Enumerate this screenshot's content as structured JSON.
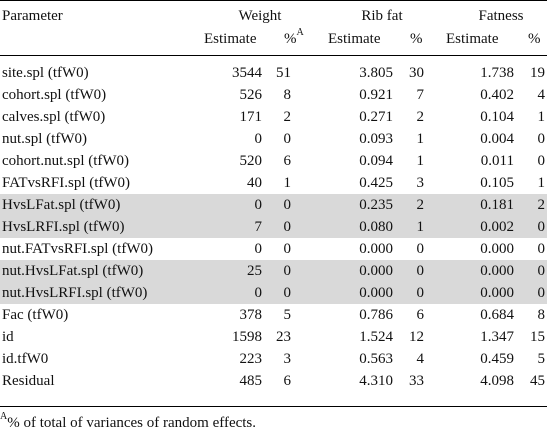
{
  "header": {
    "parameter": "Parameter",
    "groups": [
      "Weight",
      "Rib fat",
      "Fatness"
    ],
    "sub": [
      "Estimate",
      "%",
      "Estimate",
      "%",
      "Estimate",
      "%"
    ],
    "sup_a": "A"
  },
  "rows": [
    {
      "name": "site.spl (tfW0)",
      "v": [
        "3544",
        "51",
        "3.805",
        "30",
        "1.738",
        "19"
      ],
      "shaded": false
    },
    {
      "name": "cohort.spl (tfW0)",
      "v": [
        "526",
        "8",
        "0.921",
        "7",
        "0.402",
        "4"
      ],
      "shaded": false
    },
    {
      "name": "calves.spl (tfW0)",
      "v": [
        "171",
        "2",
        "0.271",
        "2",
        "0.104",
        "1"
      ],
      "shaded": false
    },
    {
      "name": "nut.spl (tfW0)",
      "v": [
        "0",
        "0",
        "0.093",
        "1",
        "0.004",
        "0"
      ],
      "shaded": false
    },
    {
      "name": "cohort.nut.spl (tfW0)",
      "v": [
        "520",
        "6",
        "0.094",
        "1",
        "0.011",
        "0"
      ],
      "shaded": false
    },
    {
      "name": "FATvsRFI.spl (tfW0)",
      "v": [
        "40",
        "1",
        "0.425",
        "3",
        "0.105",
        "1"
      ],
      "shaded": false
    },
    {
      "name": "HvsLFat.spl (tfW0)",
      "v": [
        "0",
        "0",
        "0.235",
        "2",
        "0.181",
        "2"
      ],
      "shaded": true
    },
    {
      "name": "HvsLRFI.spl (tfW0)",
      "v": [
        "7",
        "0",
        "0.080",
        "1",
        "0.002",
        "0"
      ],
      "shaded": true
    },
    {
      "name": "nut.FATvsRFI.spl (tfW0)",
      "v": [
        "0",
        "0",
        "0.000",
        "0",
        "0.000",
        "0"
      ],
      "shaded": false
    },
    {
      "name": "nut.HvsLFat.spl (tfW0)",
      "v": [
        "25",
        "0",
        "0.000",
        "0",
        "0.000",
        "0"
      ],
      "shaded": true
    },
    {
      "name": "nut.HvsLRFI.spl (tfW0)",
      "v": [
        "0",
        "0",
        "0.000",
        "0",
        "0.000",
        "0"
      ],
      "shaded": true
    },
    {
      "name": "Fac (tfW0)",
      "v": [
        "378",
        "5",
        "0.786",
        "6",
        "0.684",
        "8"
      ],
      "shaded": false
    },
    {
      "name": "id",
      "v": [
        "1598",
        "23",
        "1.524",
        "12",
        "1.347",
        "15"
      ],
      "shaded": false
    },
    {
      "name": "id.tfW0",
      "v": [
        "223",
        "3",
        "0.563",
        "4",
        "0.459",
        "5"
      ],
      "shaded": false
    },
    {
      "name": "Residual",
      "v": [
        "485",
        "6",
        "4.310",
        "33",
        "4.098",
        "45"
      ],
      "shaded": false
    }
  ],
  "footnote": {
    "marker": "A",
    "text": "% of total of variances of random effects."
  }
}
